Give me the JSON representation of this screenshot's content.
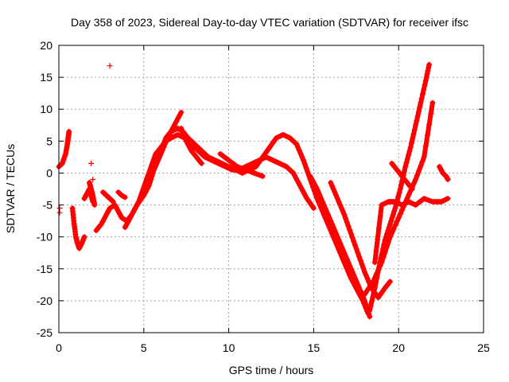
{
  "chart_data": {
    "type": "scatter",
    "title": "Day 358 of 2023, Sidereal Day-to-day VTEC variation (SDTVAR) for receiver ifsc",
    "xlabel": "GPS time / hours",
    "ylabel": "SDTVAR / TECUs",
    "xlim": [
      0,
      25
    ],
    "ylim": [
      -25,
      20
    ],
    "xticks": [
      "0",
      "5",
      "10",
      "15",
      "20",
      "25"
    ],
    "yticks": [
      "-25",
      "-20",
      "-15",
      "-10",
      "-5",
      "0",
      "5",
      "10",
      "15",
      "20"
    ],
    "grid": true,
    "color": "#ff0000",
    "marker": "+",
    "tracks": [
      {
        "x": [
          0.0,
          0.2,
          0.4,
          0.5,
          0.55,
          0.6
        ],
        "y": [
          1.0,
          1.5,
          3.0,
          4.5,
          5.5,
          6.5
        ]
      },
      {
        "x": [
          0.8,
          0.9,
          1.0,
          1.1,
          1.2,
          1.35,
          1.5
        ],
        "y": [
          -5.5,
          -8.0,
          -10.0,
          -11.0,
          -11.8,
          -11.0,
          -10.0
        ]
      },
      {
        "x": [
          1.5,
          1.6,
          1.7,
          1.8,
          1.9,
          2.0
        ],
        "y": [
          -4.0,
          -3.5,
          -3.0,
          -2.5,
          -3.5,
          -4.5
        ]
      },
      {
        "x": [
          1.8,
          1.9,
          2.0,
          2.1
        ],
        "y": [
          -1.5,
          -2.5,
          -3.5,
          -5.0
        ]
      },
      {
        "x": [
          2.2,
          2.5,
          2.8,
          3.0,
          3.3,
          3.5,
          3.7,
          4.0,
          4.3,
          4.6,
          5.0,
          5.3,
          5.6,
          6.0,
          6.4,
          6.8,
          7.2
        ],
        "y": [
          -9.0,
          -8.0,
          -6.5,
          -5.5,
          -5.0,
          -6.0,
          -7.0,
          -7.5,
          -6.5,
          -5.0,
          -3.5,
          -2.0,
          0.5,
          3.0,
          5.5,
          7.5,
          9.5
        ]
      },
      {
        "x": [
          2.6,
          2.8,
          3.0,
          3.2
        ],
        "y": [
          -3.0,
          -3.5,
          -4.0,
          -4.5
        ]
      },
      {
        "x": [
          3.5,
          3.7,
          3.9
        ],
        "y": [
          -3.0,
          -3.5,
          -3.8
        ]
      },
      {
        "x": [
          3.9,
          4.1,
          4.3,
          4.5,
          4.7,
          4.9,
          5.1,
          5.3,
          5.5,
          5.7,
          6.0,
          6.3,
          6.6,
          7.0,
          7.4,
          7.8,
          8.2,
          8.6,
          9.0,
          9.4,
          9.8,
          10.2,
          10.6,
          11.0,
          11.4,
          11.8,
          12.2,
          12.6,
          13.0,
          13.4,
          13.8,
          14.2,
          14.6,
          15.0
        ],
        "y": [
          -8.5,
          -7.5,
          -6.5,
          -5.5,
          -4.5,
          -3.0,
          -1.5,
          0.0,
          1.5,
          3.0,
          4.0,
          5.0,
          5.5,
          6.0,
          5.5,
          4.5,
          3.5,
          2.5,
          2.0,
          1.5,
          1.0,
          0.5,
          0.5,
          1.0,
          1.5,
          2.0,
          2.5,
          2.0,
          1.5,
          1.0,
          0.0,
          -2.0,
          -4.0,
          -5.5
        ]
      },
      {
        "x": [
          5.0,
          5.3,
          5.6,
          6.0,
          6.3,
          6.6,
          7.0,
          7.3,
          7.6,
          8.0,
          8.4,
          8.8,
          9.2,
          9.6,
          10.0,
          10.4,
          10.8,
          11.2,
          11.6,
          12.0,
          12.4,
          12.8,
          13.2,
          13.6,
          14.0,
          14.4,
          14.8,
          15.2,
          15.6,
          16.0,
          16.4,
          16.8,
          17.2,
          17.6,
          17.9,
          18.2
        ],
        "y": [
          -2.5,
          -1.0,
          1.0,
          3.5,
          5.5,
          6.5,
          7.0,
          6.5,
          5.5,
          4.5,
          3.5,
          2.5,
          2.0,
          1.5,
          1.0,
          0.5,
          0.0,
          0.5,
          1.0,
          2.5,
          4.0,
          5.5,
          6.0,
          5.5,
          4.5,
          2.0,
          -1.0,
          -4.0,
          -6.5,
          -9.0,
          -11.5,
          -14.0,
          -16.5,
          -18.5,
          -20.0,
          -22.0
        ]
      },
      {
        "x": [
          7.2,
          7.5,
          7.8,
          8.1,
          8.4
        ],
        "y": [
          7.0,
          5.0,
          3.5,
          2.5,
          1.5
        ]
      },
      {
        "x": [
          9.5,
          10.0,
          10.5,
          11.0,
          11.5,
          12.0
        ],
        "y": [
          3.0,
          2.0,
          1.0,
          0.5,
          0.0,
          -0.5
        ]
      },
      {
        "x": [
          14.8,
          15.2,
          15.6,
          16.0,
          16.4,
          16.8,
          17.2,
          17.6,
          18.0,
          18.3
        ],
        "y": [
          -0.5,
          -2.5,
          -5.0,
          -7.5,
          -10.0,
          -12.5,
          -15.0,
          -17.5,
          -20.0,
          -22.5
        ]
      },
      {
        "x": [
          18.3,
          18.6,
          18.9,
          19.2,
          19.5,
          19.8,
          20.1,
          20.4,
          20.7,
          21.0,
          21.3,
          21.6,
          21.8
        ],
        "y": [
          -21.5,
          -18.0,
          -14.0,
          -10.5,
          -8.0,
          -5.5,
          -2.5,
          1.0,
          4.0,
          7.5,
          11.0,
          14.5,
          17.0
        ]
      },
      {
        "x": [
          16.0,
          16.4,
          16.8,
          17.2,
          17.6,
          18.0,
          18.4,
          18.8,
          19.2,
          19.5
        ],
        "y": [
          -1.5,
          -4.0,
          -6.5,
          -9.5,
          -12.5,
          -15.5,
          -18.0,
          -19.5,
          -18.0,
          -17.0
        ]
      },
      {
        "x": [
          18.0,
          18.5,
          19.0,
          19.5,
          20.0,
          20.5,
          21.0,
          21.5,
          22.0
        ],
        "y": [
          -19.0,
          -17.0,
          -14.0,
          -10.0,
          -7.0,
          -4.0,
          -1.0,
          2.5,
          11.0
        ]
      },
      {
        "x": [
          18.6,
          19.0,
          19.4,
          19.8,
          20.2,
          20.6,
          21.0,
          21.5,
          22.0,
          22.5,
          22.9
        ],
        "y": [
          -14.0,
          -5.0,
          -4.5,
          -4.5,
          -5.0,
          -4.5,
          -5.0,
          -4.0,
          -4.5,
          -4.5,
          -4.0
        ]
      },
      {
        "x": [
          19.6,
          19.9,
          20.2,
          20.5,
          20.8
        ],
        "y": [
          1.5,
          0.5,
          -0.5,
          -1.5,
          -2.5
        ]
      },
      {
        "x": [
          22.4,
          22.6,
          22.8,
          22.9
        ],
        "y": [
          1.0,
          0.0,
          -0.5,
          -1.0
        ]
      }
    ],
    "points": [
      {
        "x": 3.0,
        "y": 16.8
      },
      {
        "x": 1.9,
        "y": 1.5
      },
      {
        "x": 0.05,
        "y": -5.5
      },
      {
        "x": 0.05,
        "y": -6.2
      },
      {
        "x": 2.0,
        "y": -1.0
      }
    ]
  }
}
